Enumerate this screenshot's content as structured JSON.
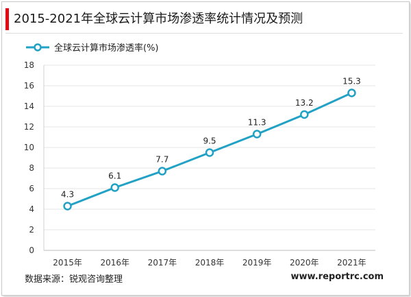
{
  "header": {
    "title": "2015-2021年全球云计算市场渗透率统计情况及预测"
  },
  "footer": {
    "source": "数据来源：锐观咨询整理",
    "website": "www.reportrc.com"
  },
  "colors": {
    "accent": "#e30613",
    "series": "#21a1c4",
    "grid": "#e6e6e6",
    "axis_text": "#333333"
  },
  "chart_data": {
    "type": "line",
    "title": "2015-2021年全球云计算市场渗透率统计情况及预测",
    "categories": [
      "2015年",
      "2016年",
      "2017年",
      "2018年",
      "2019年",
      "2020年",
      "2021年"
    ],
    "series": [
      {
        "name": "全球云计算市场渗透率(%)",
        "values": [
          4.3,
          6.1,
          7.7,
          9.5,
          11.3,
          13.2,
          15.3
        ],
        "labels": [
          "4.3",
          "6.1",
          "7.7",
          "9.5",
          "11.3",
          "13.2",
          "15.3"
        ]
      }
    ],
    "ylim": [
      0,
      18
    ],
    "yticks": [
      "0",
      "2",
      "4",
      "6",
      "8",
      "10",
      "12",
      "14",
      "16",
      "18"
    ],
    "xlabel": "",
    "ylabel": "",
    "grid": true,
    "legend": "top-left"
  }
}
